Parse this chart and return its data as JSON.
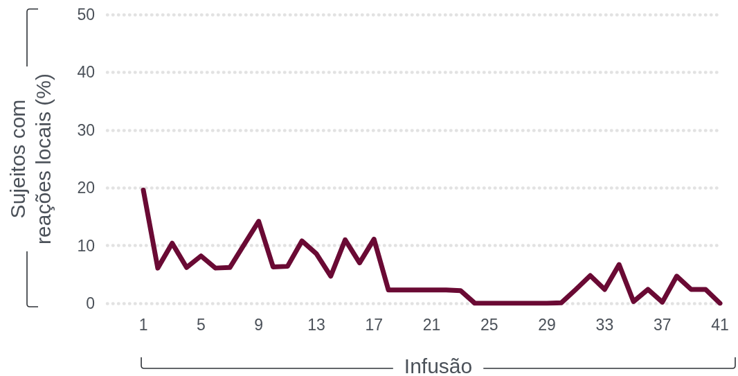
{
  "chart_data": {
    "type": "line",
    "xlabel": "Infusão",
    "ylabel": "Sujeitos com reações locais (%)",
    "x": [
      1,
      2,
      3,
      4,
      5,
      6,
      7,
      8,
      9,
      10,
      11,
      12,
      13,
      14,
      15,
      16,
      17,
      18,
      19,
      20,
      21,
      22,
      23,
      24,
      25,
      26,
      27,
      28,
      29,
      30,
      31,
      32,
      33,
      34,
      35,
      36,
      37,
      38,
      39,
      40,
      41
    ],
    "series": [
      {
        "color": "#6a0a34",
        "values": [
          19.6,
          6.1,
          10.4,
          6.2,
          8.2,
          6.1,
          6.2,
          10.2,
          14.2,
          6.3,
          6.4,
          10.8,
          8.6,
          4.7,
          11.0,
          7.0,
          11.1,
          2.3,
          2.3,
          2.3,
          2.3,
          2.3,
          2.2,
          0,
          0,
          0,
          0,
          0,
          0,
          0.1,
          2.4,
          4.8,
          2.4,
          6.7,
          0.3,
          2.4,
          0.2,
          4.7,
          2.4,
          2.4,
          0
        ]
      }
    ],
    "xlim": [
      -1.5,
      41
    ],
    "xticks": [
      1,
      5,
      9,
      13,
      17,
      21,
      25,
      29,
      33,
      37,
      41
    ],
    "ylim": [
      0,
      50
    ],
    "yticks": [
      0,
      10,
      20,
      30,
      40,
      50
    ],
    "grid": "y",
    "marker": "none",
    "line_style": "solid"
  }
}
